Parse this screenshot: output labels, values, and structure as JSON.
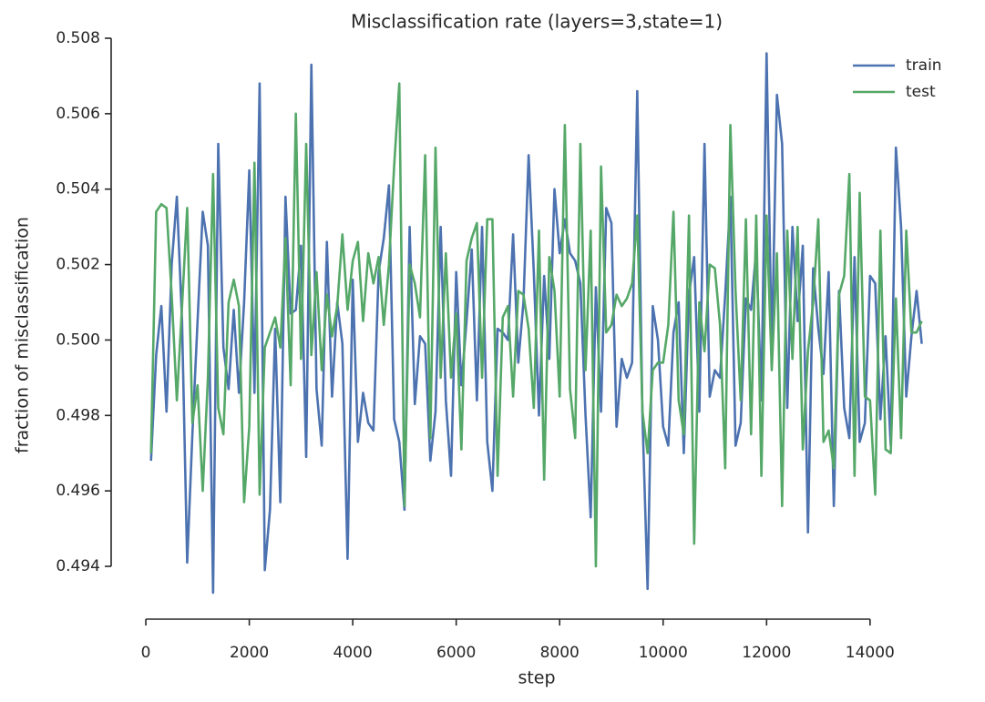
{
  "chart_data": {
    "type": "line",
    "title": "Misclassification rate (layers=3,state=1)",
    "x_label": "step",
    "y_label": "fraction of misclassification",
    "x": [
      100,
      200,
      300,
      400,
      500,
      600,
      700,
      800,
      900,
      1000,
      1100,
      1200,
      1300,
      1400,
      1500,
      1600,
      1700,
      1800,
      1900,
      2000,
      2100,
      2200,
      2300,
      2400,
      2500,
      2600,
      2700,
      2800,
      2900,
      3000,
      3100,
      3200,
      3300,
      3400,
      3500,
      3600,
      3700,
      3800,
      3900,
      4000,
      4100,
      4200,
      4300,
      4400,
      4500,
      4600,
      4700,
      4800,
      4900,
      5000,
      5100,
      5200,
      5300,
      5400,
      5500,
      5600,
      5700,
      5800,
      5900,
      6000,
      6100,
      6200,
      6300,
      6400,
      6500,
      6600,
      6700,
      6800,
      6900,
      7000,
      7100,
      7200,
      7300,
      7400,
      7500,
      7600,
      7700,
      7800,
      7900,
      8000,
      8100,
      8200,
      8300,
      8400,
      8500,
      8600,
      8700,
      8800,
      8900,
      9000,
      9100,
      9200,
      9300,
      9400,
      9500,
      9600,
      9700,
      9800,
      9900,
      10000,
      10100,
      10200,
      10300,
      10400,
      10500,
      10600,
      10700,
      10800,
      10900,
      11000,
      11100,
      11200,
      11300,
      11400,
      11500,
      11600,
      11700,
      11800,
      11900,
      12000,
      12100,
      12200,
      12300,
      12400,
      12500,
      12600,
      12700,
      12800,
      12900,
      13000,
      13100,
      13200,
      13300,
      13400,
      13500,
      13600,
      13700,
      13800,
      13900,
      14000,
      14100,
      14200,
      14300,
      14400,
      14500,
      14600,
      14700,
      14800,
      14900,
      15000
    ],
    "series": [
      {
        "name": "train",
        "color": "#4c72b0",
        "values": [
          0.4968,
          0.4996,
          0.5009,
          0.4981,
          0.502,
          0.5038,
          0.5005,
          0.4941,
          0.4975,
          0.5005,
          0.5034,
          0.5025,
          0.4933,
          0.5052,
          0.4998,
          0.4987,
          0.5008,
          0.4986,
          0.501,
          0.5045,
          0.4986,
          0.5068,
          0.4939,
          0.4955,
          0.5003,
          0.4957,
          0.5038,
          0.5007,
          0.5008,
          0.5025,
          0.4969,
          0.5073,
          0.4987,
          0.4972,
          0.5026,
          0.4985,
          0.501,
          0.4999,
          0.4942,
          0.5016,
          0.4973,
          0.4986,
          0.4978,
          0.4976,
          0.5018,
          0.5027,
          0.5041,
          0.4979,
          0.4973,
          0.4955,
          0.503,
          0.4983,
          0.5001,
          0.4999,
          0.4968,
          0.4981,
          0.503,
          0.4984,
          0.4964,
          0.5018,
          0.4988,
          0.5005,
          0.5024,
          0.4984,
          0.503,
          0.4973,
          0.496,
          0.5003,
          0.5002,
          0.5,
          0.5028,
          0.4994,
          0.501,
          0.5049,
          0.5018,
          0.498,
          0.5017,
          0.4995,
          0.504,
          0.5023,
          0.5032,
          0.5023,
          0.5021,
          0.5015,
          0.498,
          0.4953,
          0.5014,
          0.4981,
          0.5035,
          0.5031,
          0.4977,
          0.4995,
          0.499,
          0.4994,
          0.5066,
          0.498,
          0.4934,
          0.5009,
          0.5,
          0.4977,
          0.4972,
          0.5002,
          0.501,
          0.497,
          0.5012,
          0.5022,
          0.4981,
          0.5052,
          0.4985,
          0.4992,
          0.499,
          0.5012,
          0.5038,
          0.4972,
          0.4978,
          0.5011,
          0.5008,
          0.5024,
          0.4984,
          0.5076,
          0.4996,
          0.5065,
          0.5052,
          0.4982,
          0.503,
          0.5005,
          0.5025,
          0.4949,
          0.5019,
          0.5003,
          0.4991,
          0.5018,
          0.4956,
          0.5013,
          0.4982,
          0.4974,
          0.5022,
          0.4973,
          0.4978,
          0.5017,
          0.5015,
          0.4979,
          0.5001,
          0.4972,
          0.5051,
          0.503,
          0.4985,
          0.5001,
          0.5013,
          0.4999
        ]
      },
      {
        "name": "test",
        "color": "#55a868",
        "values": [
          0.497,
          0.5034,
          0.5036,
          0.5035,
          0.5012,
          0.4984,
          0.5009,
          0.5035,
          0.4978,
          0.4988,
          0.496,
          0.499,
          0.5044,
          0.4982,
          0.4975,
          0.501,
          0.5016,
          0.5009,
          0.4957,
          0.4977,
          0.5047,
          0.4959,
          0.4998,
          0.5002,
          0.5006,
          0.4998,
          0.5027,
          0.4988,
          0.506,
          0.4995,
          0.5052,
          0.4996,
          0.5018,
          0.4992,
          0.5012,
          0.5001,
          0.5009,
          0.5028,
          0.5008,
          0.5021,
          0.5026,
          0.5005,
          0.5023,
          0.5015,
          0.5022,
          0.5004,
          0.502,
          0.5046,
          0.5068,
          0.4956,
          0.502,
          0.5015,
          0.5006,
          0.5049,
          0.4974,
          0.5051,
          0.499,
          0.5023,
          0.499,
          0.5007,
          0.4971,
          0.5021,
          0.5027,
          0.5031,
          0.499,
          0.5032,
          0.5032,
          0.4964,
          0.5006,
          0.5009,
          0.4985,
          0.5013,
          0.5012,
          0.5003,
          0.4982,
          0.5029,
          0.4963,
          0.5022,
          0.5013,
          0.4985,
          0.5057,
          0.4987,
          0.4974,
          0.5052,
          0.4992,
          0.5029,
          0.494,
          0.5046,
          0.5002,
          0.5004,
          0.5012,
          0.5009,
          0.5011,
          0.5015,
          0.5033,
          0.4981,
          0.497,
          0.4992,
          0.4994,
          0.4994,
          0.5004,
          0.5034,
          0.4984,
          0.4975,
          0.5033,
          0.4946,
          0.501,
          0.4997,
          0.502,
          0.5019,
          0.5004,
          0.4966,
          0.5057,
          0.5013,
          0.4984,
          0.5032,
          0.4975,
          0.5033,
          0.4964,
          0.5033,
          0.4992,
          0.5023,
          0.4956,
          0.5029,
          0.4995,
          0.503,
          0.4971,
          0.4997,
          0.501,
          0.5032,
          0.4973,
          0.4976,
          0.4966,
          0.5012,
          0.5017,
          0.5044,
          0.4964,
          0.5039,
          0.4985,
          0.4984,
          0.4959,
          0.5029,
          0.4971,
          0.497,
          0.5011,
          0.4974,
          0.5029,
          0.5002,
          0.5002,
          0.5005
        ]
      }
    ],
    "xlim": [
      -670,
      15500
    ],
    "xticks": [
      0,
      2000,
      4000,
      6000,
      8000,
      10000,
      12000,
      14000
    ],
    "ylim": [
      0.4926,
      0.508
    ],
    "yticks": [
      0.494,
      0.496,
      0.498,
      {
        "value": 0.5,
        "label": "0.500"
      },
      0.502,
      0.504,
      0.506,
      0.508
    ],
    "legend": "upper right",
    "grid": false
  }
}
